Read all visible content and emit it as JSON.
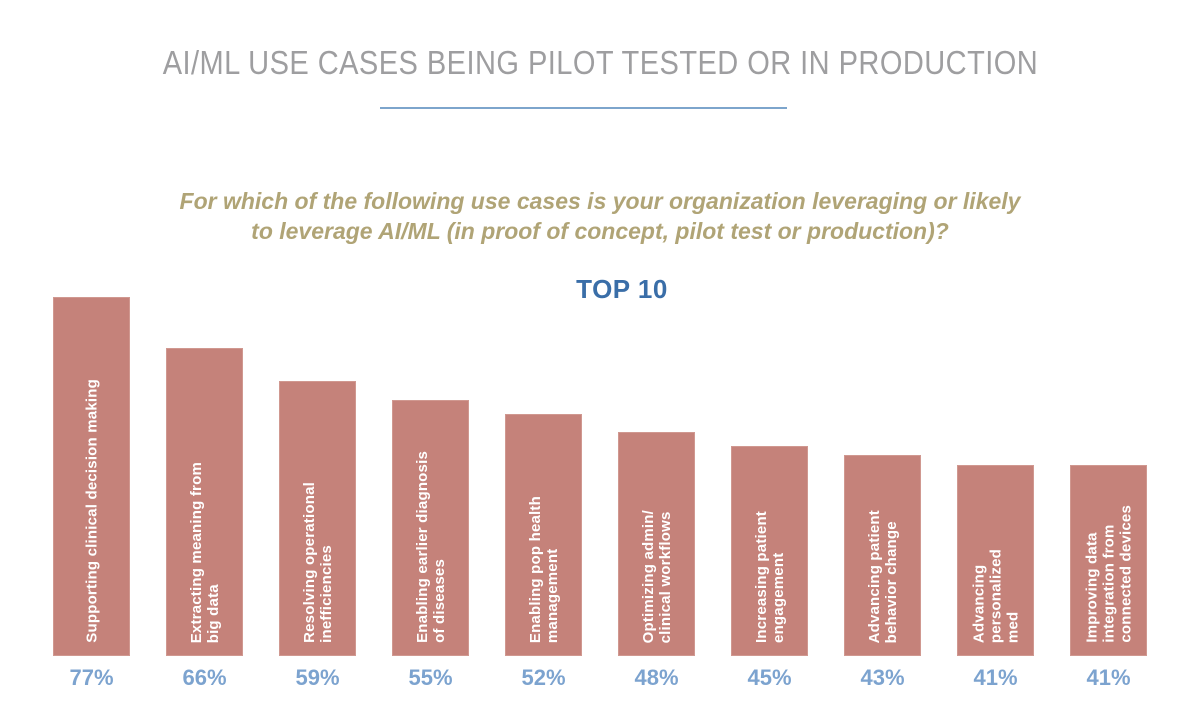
{
  "page": {
    "title": "AI/ML USE CASES BEING PILOT TESTED OR IN PRODUCTION",
    "question_line1": "For which of the following use cases is your organization leveraging or likely",
    "question_line2": "to leverage AI/ML (in proof of concept, pilot test or production)?",
    "chart_heading": "TOP 10"
  },
  "colors": {
    "title_gray": "#9e9ea0",
    "underline_blue": "#7da5cc",
    "question_tan": "#b0a476",
    "heading_blue": "#3a6ea8",
    "bar_fill": "#c5827a",
    "bar_label_white": "#ffffff",
    "value_blue": "#7ca3cf"
  },
  "chart_data": {
    "type": "bar",
    "title": "AI/ML USE CASES BEING PILOT TESTED OR IN PRODUCTION",
    "subtitle": "For which of the following use cases is your organization leveraging or likely to leverage AI/ML (in proof of concept, pilot test or production)?",
    "heading": "TOP 10",
    "categories": [
      "Supporting clinical decision making",
      "Extracting meaning from big data",
      "Resolving operational inefficiencies",
      "Enabling earlier diagnosis of diseases",
      "Enabling pop health management",
      "Optimizing admin/ clinical workflows",
      "Increasing patient engagement",
      "Advancing patient behavior change",
      "Advancing personalized med",
      "Improving data integration from connected devices"
    ],
    "category_lines": [
      "Supporting clinical decision making",
      "Extracting meaning from\nbig data",
      "Resolving operational\ninefficiencies",
      "Enabling earlier diagnosis\nof diseases",
      "Enabling pop health\nmanagement",
      "Optimizing admin/\nclinical workflows",
      "Increasing patient\nengagement",
      "Advancing patient\nbehavior change",
      "Advancing\npersonalized\nmed",
      "Improving data\nintegration from\nconnected devices"
    ],
    "values": [
      77,
      66,
      59,
      55,
      52,
      48,
      45,
      43,
      41,
      41
    ],
    "value_labels": [
      "77%",
      "66%",
      "59%",
      "55%",
      "52%",
      "48%",
      "45%",
      "43%",
      "41%",
      "41%"
    ],
    "unit": "%",
    "ylim": [
      0,
      100
    ],
    "grid": false,
    "legend": false,
    "orientation": "vertical",
    "category_label_position": "inside-bar-vertical",
    "value_label_position": "below-bar"
  }
}
